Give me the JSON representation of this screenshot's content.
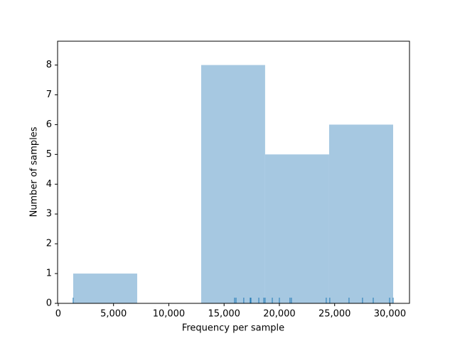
{
  "chart_data": {
    "type": "histogram",
    "xlabel": "Frequency per sample",
    "ylabel": "Number of samples",
    "bins": [
      1350,
      7140,
      12930,
      18710,
      24500,
      30290
    ],
    "values": [
      1,
      0,
      8,
      5,
      6
    ],
    "color": "#a6c8e1",
    "rug": [
      1350,
      15950,
      16080,
      16780,
      17360,
      17430,
      18140,
      18590,
      18710,
      19360,
      20000,
      20960,
      21090,
      24240,
      24560,
      26300,
      27520,
      28490,
      29970,
      30290
    ],
    "rug_color": "#1f77b4",
    "xlim": [
      -60,
      31770
    ],
    "ylim": [
      0,
      8.8
    ],
    "xticks": [
      0,
      {
        "value": 5000,
        "label": "5,000"
      },
      {
        "value": 10000,
        "label": "10,000"
      },
      {
        "value": 15000,
        "label": "15,000"
      },
      {
        "value": 20000,
        "label": "20,000"
      },
      {
        "value": 25000,
        "label": "25,000"
      },
      {
        "value": 30000,
        "label": "30,000"
      }
    ],
    "yticks": [
      0,
      1,
      2,
      3,
      4,
      5,
      6,
      7,
      8
    ]
  }
}
